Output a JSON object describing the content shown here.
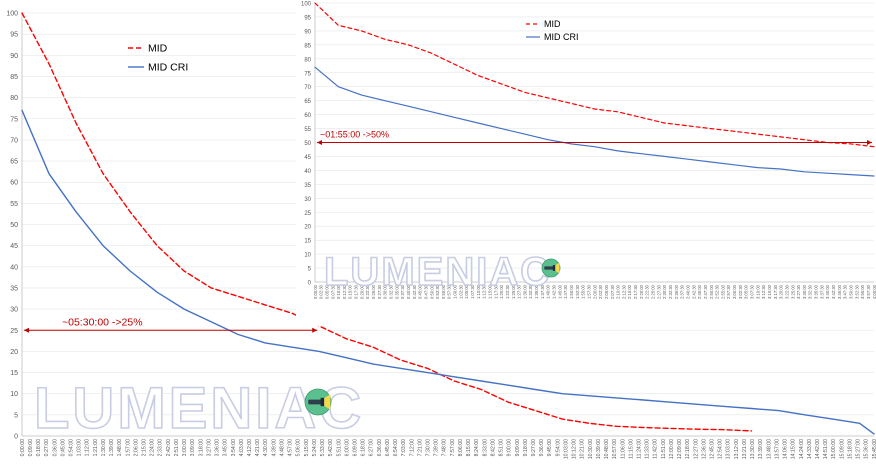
{
  "colors": {
    "mid": "#ff0000",
    "mid_cri": "#4472c4",
    "annotation": "#c00000",
    "grid": "#e6e6e6",
    "axis": "#bfbfbf",
    "text": "#595959",
    "watermark_outline": "#c8cde3"
  },
  "watermark": {
    "text": "LUMENIAC",
    "icon": "flashlight-logo-icon"
  },
  "chart_data": [
    {
      "type": "line",
      "x_unit": "elapsed time (h:mm:ss)",
      "x": [
        "0:00:00",
        "0:30:00",
        "1:00:00",
        "1:30:00",
        "2:00:00",
        "2:30:00",
        "3:00:00",
        "3:30:00",
        "4:00:00",
        "4:30:00",
        "5:00:00",
        "5:30:00",
        "6:00:00",
        "6:30:00",
        "7:00:00",
        "7:30:00",
        "8:00:00",
        "8:30:00",
        "9:00:00",
        "9:30:00",
        "10:00:00",
        "10:30:00",
        "11:00:00",
        "11:30:00",
        "12:00:00",
        "12:30:00",
        "13:00:00",
        "13:30:00",
        "14:00:00",
        "14:30:00",
        "15:00:00",
        "15:30:00",
        "15:46:00"
      ],
      "series": [
        {
          "name": "MID",
          "style": "dashed",
          "values": [
            100,
            88,
            74,
            62,
            53,
            45,
            39,
            35,
            33,
            31,
            29,
            26,
            23,
            21,
            18,
            16,
            13,
            11,
            8,
            6,
            4,
            3,
            2.3,
            2,
            1.8,
            1.6,
            1.5,
            1.2,
            null,
            null,
            null,
            null,
            null
          ]
        },
        {
          "name": "MID CRI",
          "style": "solid",
          "values": [
            77,
            62,
            53,
            45,
            39,
            34,
            30,
            27,
            24,
            22,
            21,
            20,
            18.5,
            17,
            16,
            15,
            14,
            13,
            12,
            11,
            10,
            9.5,
            9,
            8.5,
            8,
            7.5,
            7,
            6.5,
            6,
            5,
            4,
            3,
            0.5
          ]
        }
      ],
      "ylim": [
        0,
        100
      ],
      "yticks": [
        0,
        5,
        10,
        15,
        20,
        25,
        30,
        35,
        40,
        45,
        50,
        55,
        60,
        65,
        70,
        75,
        80,
        85,
        90,
        95,
        100
      ],
      "xtick_labels": [
        "0:00:00",
        "0:09:00",
        "0:18:00",
        "0:27:00",
        "0:36:00",
        "0:45:00",
        "0:54:00",
        "1:03:00",
        "1:12:00",
        "1:21:00",
        "1:30:00",
        "1:39:00",
        "1:48:00",
        "1:57:00",
        "2:06:00",
        "2:15:00",
        "2:24:00",
        "2:33:00",
        "2:42:00",
        "2:51:00",
        "3:00:00",
        "3:09:00",
        "3:18:00",
        "3:27:00",
        "3:36:00",
        "3:45:00",
        "3:54:00",
        "4:03:00",
        "4:12:00",
        "4:21:00",
        "4:30:00",
        "4:39:00",
        "4:48:00",
        "4:57:00",
        "5:06:00",
        "5:15:00",
        "5:24:00",
        "5:33:00",
        "5:42:00",
        "5:51:00",
        "6:00:00",
        "6:09:00",
        "6:18:00",
        "6:27:00",
        "6:36:00",
        "6:45:00",
        "6:54:00",
        "7:03:00",
        "7:12:00",
        "7:21:00",
        "7:30:00",
        "7:39:00",
        "7:48:00",
        "7:57:00",
        "8:06:00",
        "8:15:00",
        "8:24:00",
        "8:33:00",
        "8:42:00",
        "8:51:00",
        "9:00:00",
        "9:09:00",
        "9:18:00",
        "9:27:00",
        "9:36:00",
        "9:45:00",
        "9:54:00",
        "10:03:00",
        "10:12:00",
        "10:21:00",
        "10:30:00",
        "10:39:00",
        "10:48:00",
        "10:57:00",
        "11:06:00",
        "11:15:00",
        "11:24:00",
        "11:33:00",
        "11:42:00",
        "11:51:00",
        "12:00:00",
        "12:09:00",
        "12:18:00",
        "12:27:00",
        "12:36:00",
        "12:45:00",
        "12:54:00",
        "13:03:00",
        "13:12:00",
        "13:21:00",
        "13:30:00",
        "13:39:00",
        "13:48:00",
        "13:57:00",
        "14:06:00",
        "14:15:00",
        "14:24:00",
        "14:33:00",
        "14:42:00",
        "14:51:00",
        "15:00:00",
        "15:09:00",
        "15:18:00",
        "15:27:00",
        "15:36:00",
        "15:45:00"
      ],
      "legend": [
        "MID",
        "MID CRI"
      ],
      "legend_position": "top-left",
      "annotation": {
        "text": "~05:30:00 ->25%",
        "x_from": "0:00:00",
        "x_to": "5:30:00",
        "y": 25
      },
      "grid": true
    },
    {
      "type": "line",
      "x_unit": "elapsed time (h:mm:ss)",
      "x": [
        "0:00:00",
        "0:10:00",
        "0:20:00",
        "0:30:00",
        "0:40:00",
        "0:50:00",
        "1:00:00",
        "1:10:00",
        "1:20:00",
        "1:30:00",
        "1:40:00",
        "1:50:00",
        "2:00:00",
        "2:10:00",
        "2:20:00",
        "2:30:00",
        "2:40:00",
        "2:50:00",
        "3:00:00",
        "3:10:00",
        "3:20:00",
        "3:30:00",
        "3:40:00",
        "3:50:00",
        "4:00:00"
      ],
      "series": [
        {
          "name": "MID",
          "style": "dashed",
          "values": [
            100,
            92,
            90,
            87,
            85,
            82,
            78,
            74,
            71,
            68,
            66,
            64,
            62,
            61,
            59,
            57,
            56,
            55,
            54,
            53,
            52,
            51,
            50,
            49.5,
            48.5
          ]
        },
        {
          "name": "MID CRI",
          "style": "solid",
          "values": [
            77,
            70,
            67,
            65,
            63,
            61,
            59,
            57,
            55,
            53,
            51,
            49.5,
            48.5,
            47,
            46,
            45,
            44,
            43,
            42,
            41,
            40.5,
            39.5,
            39,
            38.5,
            38
          ]
        }
      ],
      "ylim": [
        0,
        100
      ],
      "yticks": [
        0,
        5,
        10,
        15,
        20,
        25,
        30,
        35,
        40,
        45,
        50,
        55,
        60,
        65,
        70,
        75,
        80,
        85,
        90,
        95,
        100
      ],
      "xtick_labels": [
        "0:00:00",
        "0:02:30",
        "0:05:00",
        "0:07:30",
        "0:10:00",
        "0:12:30",
        "0:15:00",
        "0:17:30",
        "0:20:00",
        "0:22:30",
        "0:25:00",
        "0:27:30",
        "0:30:00",
        "0:32:30",
        "0:35:00",
        "0:37:30",
        "0:40:00",
        "0:42:30",
        "0:45:00",
        "0:47:30",
        "0:50:00",
        "0:52:30",
        "0:55:00",
        "0:57:30",
        "1:00:00",
        "1:02:30",
        "1:05:00",
        "1:07:30",
        "1:10:00",
        "1:12:30",
        "1:15:00",
        "1:17:30",
        "1:20:00",
        "1:22:30",
        "1:25:00",
        "1:27:30",
        "1:30:00",
        "1:32:30",
        "1:35:00",
        "1:37:30",
        "1:40:00",
        "1:42:30",
        "1:45:00",
        "1:47:30",
        "1:50:00",
        "1:52:30",
        "1:55:00",
        "1:57:30",
        "2:00:00",
        "2:02:30",
        "2:05:00",
        "2:07:30",
        "2:10:00",
        "2:12:30",
        "2:15:00",
        "2:17:30",
        "2:20:00",
        "2:22:30",
        "2:25:00",
        "2:27:30",
        "2:30:00",
        "2:32:30",
        "2:35:00",
        "2:37:30",
        "2:40:00",
        "2:42:30",
        "2:45:00",
        "2:47:30",
        "2:50:00",
        "2:52:30",
        "2:55:00",
        "2:57:30",
        "3:00:00",
        "3:02:30",
        "3:05:00",
        "3:07:30",
        "3:10:00",
        "3:12:30",
        "3:15:00",
        "3:17:30",
        "3:20:00",
        "3:22:30",
        "3:25:00",
        "3:27:30",
        "3:30:00",
        "3:32:30",
        "3:35:00",
        "3:37:30",
        "3:40:00",
        "3:42:30",
        "3:45:00",
        "3:47:30",
        "3:50:00",
        "3:52:30",
        "3:55:00",
        "3:57:30",
        "4:00:00"
      ],
      "legend": [
        "MID",
        "MID CRI"
      ],
      "legend_position": "top-right",
      "annotation": {
        "text": "~01:55:00 ->50%",
        "x_from": "0:00:00",
        "x_to": "4:00:00",
        "y": 50
      },
      "grid": true
    }
  ]
}
